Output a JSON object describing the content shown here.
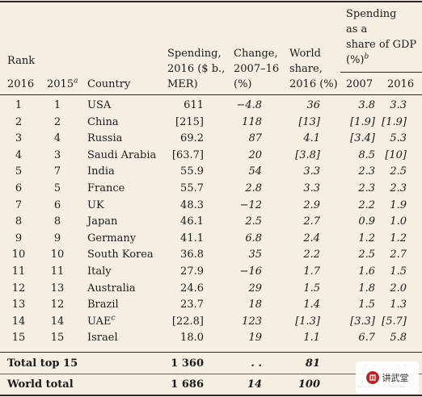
{
  "headers": {
    "rank": "Rank",
    "rank_2016": "2016",
    "rank_2015": "2015",
    "rank_2015_sup": "a",
    "country": "Country",
    "spending_l1": "Spending,",
    "spending_l2": "2016 ($ b.,",
    "spending_l3": "MER)",
    "change_l1": "Change,",
    "change_l2": "2007–16",
    "change_l3": "(%)",
    "share_l1": "World",
    "share_l2": "share,",
    "share_l3": "2016 (%)",
    "gdp_l1": "Spending",
    "gdp_l2": "as a",
    "gdp_l3": "share of GDP",
    "gdp_l4": "(%)",
    "gdp_sup": "b",
    "gdp_2007": "2007",
    "gdp_2016": "2016"
  },
  "rows": [
    {
      "r16": "1",
      "r15": "1",
      "country": "USA",
      "spend": "611",
      "change": "−4.8",
      "share": "36",
      "g07": "3.8",
      "g16": "3.3"
    },
    {
      "r16": "2",
      "r15": "2",
      "country": "China",
      "spend": "[215]",
      "change": "118",
      "share": "[13]",
      "g07": "[1.9]",
      "g16": "[1.9]"
    },
    {
      "r16": "3",
      "r15": "4",
      "country": "Russia",
      "spend": "69.2",
      "change": "87",
      "share": "4.1",
      "g07": "[3.4]",
      "g16": "5.3"
    },
    {
      "r16": "4",
      "r15": "3",
      "country": "Saudi Arabia",
      "spend": "[63.7]",
      "change": "20",
      "share": "[3.8]",
      "g07": "8.5",
      "g16": "[10]"
    },
    {
      "r16": "5",
      "r15": "7",
      "country": "India",
      "spend": "55.9",
      "change": "54",
      "share": "3.3",
      "g07": "2.3",
      "g16": "2.5"
    },
    {
      "r16": "6",
      "r15": "5",
      "country": "France",
      "spend": "55.7",
      "change": "2.8",
      "share": "3.3",
      "g07": "2.3",
      "g16": "2.3"
    },
    {
      "r16": "7",
      "r15": "6",
      "country": "UK",
      "spend": "48.3",
      "change": "−12",
      "share": "2.9",
      "g07": "2.2",
      "g16": "1.9"
    },
    {
      "r16": "8",
      "r15": "8",
      "country": "Japan",
      "spend": "46.1",
      "change": "2.5",
      "share": "2.7",
      "g07": "0.9",
      "g16": "1.0"
    },
    {
      "r16": "9",
      "r15": "9",
      "country": "Germany",
      "spend": "41.1",
      "change": "6.8",
      "share": "2.4",
      "g07": "1.2",
      "g16": "1.2"
    },
    {
      "r16": "10",
      "r15": "10",
      "country": "South Korea",
      "spend": "36.8",
      "change": "35",
      "share": "2.2",
      "g07": "2.5",
      "g16": "2.7"
    },
    {
      "r16": "11",
      "r15": "11",
      "country": "Italy",
      "spend": "27.9",
      "change": "−16",
      "share": "1.7",
      "g07": "1.6",
      "g16": "1.5"
    },
    {
      "r16": "12",
      "r15": "13",
      "country": "Australia",
      "spend": "24.6",
      "change": "29",
      "share": "1.5",
      "g07": "1.8",
      "g16": "2.0"
    },
    {
      "r16": "13",
      "r15": "12",
      "country": "Brazil",
      "spend": "23.7",
      "change": "18",
      "share": "1.4",
      "g07": "1.5",
      "g16": "1.3"
    },
    {
      "r16": "14",
      "r15": "14",
      "country": "UAE",
      "country_sup": "c",
      "spend": "[22.8]",
      "change": "123",
      "share": "[1.3]",
      "g07": "[3.3]",
      "g16": "[5.7]"
    },
    {
      "r16": "15",
      "r15": "15",
      "country": "Israel",
      "spend": "18.0",
      "change": "19",
      "share": "1.1",
      "g07": "6.7",
      "g16": "5.8"
    }
  ],
  "totals": [
    {
      "label": "Total top 15",
      "spend": "1 360",
      "change": ". .",
      "share": "81",
      "g07": ". .",
      "g16": ". ."
    },
    {
      "label": "World total",
      "spend": "1 686",
      "change": "14",
      "share": "100",
      "g07": "2.3",
      "g16": "2.2"
    }
  ],
  "watermark": {
    "text": "讲武堂",
    "icon": "seal-icon"
  }
}
